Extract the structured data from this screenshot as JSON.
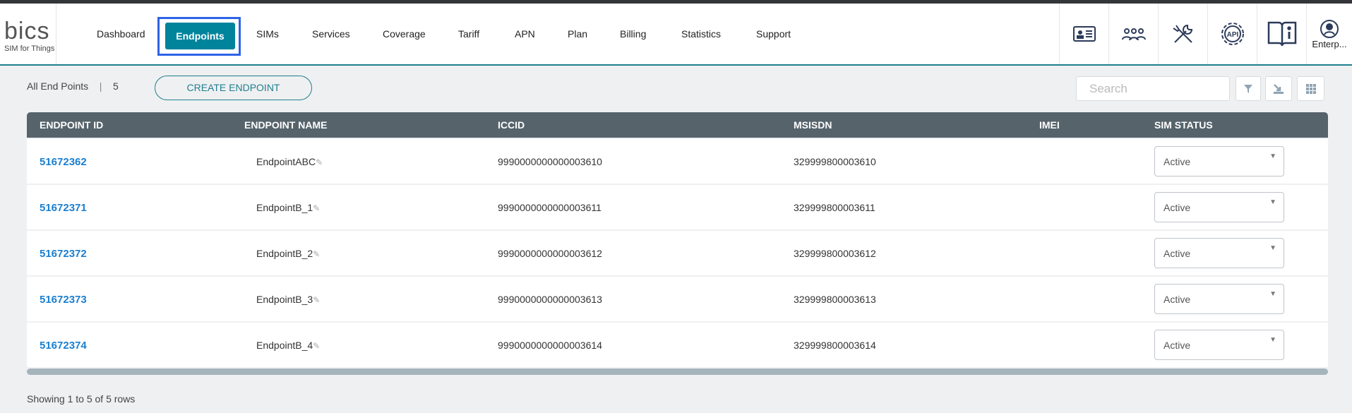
{
  "logo": {
    "brand": "bics",
    "tagline": "SIM for Things"
  },
  "nav": {
    "items": [
      "Dashboard",
      "Endpoints",
      "SIMs",
      "Services",
      "Coverage",
      "Tariff",
      "APN",
      "Plan",
      "Billing",
      "Statistics",
      "Support"
    ],
    "active": "Endpoints"
  },
  "header_icons": [
    "id-card-icon",
    "users-group-icon",
    "tools-icon",
    "api-gear-icon",
    "info-book-icon",
    "user-icon"
  ],
  "user": {
    "label": "Enterp..."
  },
  "toolbar": {
    "title": "All End Points",
    "separator": "|",
    "count": "5",
    "create_label": "CREATE ENDPOINT",
    "search_placeholder": "Search",
    "search_value": ""
  },
  "table": {
    "columns": [
      "ENDPOINT ID",
      "ENDPOINT NAME",
      "ICCID",
      "MSISDN",
      "IMEI",
      "SIM STATUS"
    ],
    "rows": [
      {
        "id": "51672362",
        "name": "EndpointABC",
        "iccid": "9990000000000003610",
        "msisdn": "329999800003610",
        "imei": "",
        "status": "Active"
      },
      {
        "id": "51672371",
        "name": "EndpointB_1",
        "iccid": "9990000000000003611",
        "msisdn": "329999800003611",
        "imei": "",
        "status": "Active"
      },
      {
        "id": "51672372",
        "name": "EndpointB_2",
        "iccid": "9990000000000003612",
        "msisdn": "329999800003612",
        "imei": "",
        "status": "Active"
      },
      {
        "id": "51672373",
        "name": "EndpointB_3",
        "iccid": "9990000000000003613",
        "msisdn": "329999800003613",
        "imei": "",
        "status": "Active"
      },
      {
        "id": "51672374",
        "name": "EndpointB_4",
        "iccid": "9990000000000003614",
        "msisdn": "329999800003614",
        "imei": "",
        "status": "Active"
      }
    ]
  },
  "footer": {
    "text": "Showing 1 to 5 of 5 rows"
  },
  "colors": {
    "accent": "#00849c",
    "link": "#1a7fd0",
    "table_header": "#56636b",
    "focus": "#2d63e8"
  }
}
